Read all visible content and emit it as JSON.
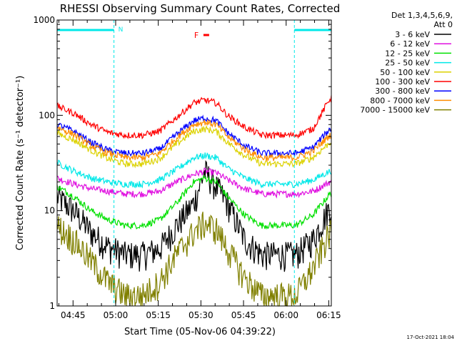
{
  "chart_data": {
    "type": "line",
    "title": "RHESSI Observing Summary Count Rates, Corrected",
    "xlabel": "Start Time (05-Nov-06 04:39:22)",
    "ylabel": "Corrected Count Rate (s⁻¹ detector⁻¹)",
    "y_scale": "log",
    "ylim": [
      1,
      1000
    ],
    "xlim_minutes": [
      0,
      96.5
    ],
    "x_tick_labels": [
      "04:45",
      "05:00",
      "05:15",
      "05:30",
      "05:45",
      "06:00",
      "06:15"
    ],
    "x_tick_minutes": [
      5.6,
      20.6,
      35.6,
      50.6,
      65.6,
      80.6,
      95.6
    ],
    "y_tick_labels": [
      "1",
      "10",
      "100",
      "1000"
    ],
    "y_tick_values": [
      1,
      10,
      100,
      1000
    ],
    "legend_header": [
      "Det 1,3,4,5,6,9,",
      "Att 0"
    ],
    "legend_position": "right",
    "annotations": {
      "night_label": "N",
      "flare_label": "F",
      "night_bars_minutes": [
        [
          0,
          20
        ],
        [
          83.5,
          96.5
        ]
      ],
      "flare_bar_minutes": [
        51.5,
        53.5
      ]
    },
    "footer_date": "17-Oct-2021 18:04",
    "x_minutes": [
      0,
      6,
      12,
      18,
      24,
      30,
      36,
      42,
      48,
      52,
      56,
      60,
      66,
      72,
      78,
      84,
      90,
      96
    ],
    "series": [
      {
        "name": "3 - 6 keV",
        "color": "#000000",
        "values": [
          14,
          10,
          6,
          4.2,
          3.5,
          3.5,
          4,
          7,
          12,
          26,
          18,
          12,
          5,
          3.5,
          3.5,
          3.5,
          5,
          11
        ]
      },
      {
        "name": "6 - 12 keV",
        "color": "#e010e0",
        "values": [
          22,
          19,
          17,
          16,
          15,
          15,
          16,
          20,
          24,
          26,
          25,
          21,
          17,
          15,
          15,
          15,
          16,
          20
        ]
      },
      {
        "name": "12 - 25 keV",
        "color": "#00e000",
        "values": [
          18,
          14,
          10,
          8,
          7,
          7,
          8,
          12,
          20,
          22,
          20,
          14,
          9,
          7,
          7,
          7,
          9,
          15
        ]
      },
      {
        "name": "25 - 50 keV",
        "color": "#00e8e8",
        "values": [
          32,
          26,
          22,
          20,
          19,
          19,
          21,
          27,
          36,
          38,
          36,
          28,
          22,
          19,
          19,
          19,
          21,
          26
        ]
      },
      {
        "name": "50 - 100 keV",
        "color": "#dcd200",
        "values": [
          65,
          55,
          43,
          35,
          31,
          31,
          35,
          50,
          68,
          72,
          68,
          52,
          38,
          31,
          31,
          31,
          36,
          52
        ]
      },
      {
        "name": "100 - 300 keV",
        "color": "#ff0000",
        "values": [
          125,
          105,
          80,
          66,
          62,
          62,
          68,
          95,
          135,
          145,
          135,
          100,
          75,
          62,
          62,
          62,
          72,
          150
        ]
      },
      {
        "name": "300 - 800 keV",
        "color": "#0000ff",
        "values": [
          80,
          68,
          52,
          43,
          40,
          40,
          44,
          63,
          88,
          94,
          88,
          66,
          48,
          40,
          40,
          40,
          46,
          72
        ]
      },
      {
        "name": "800 - 7000 keV",
        "color": "#ff8c00",
        "values": [
          75,
          63,
          48,
          40,
          36,
          36,
          40,
          58,
          80,
          85,
          80,
          60,
          44,
          36,
          36,
          36,
          42,
          62
        ]
      },
      {
        "name": "7000 - 15000 keV",
        "color": "#808000",
        "values": [
          7,
          5,
          3,
          1.8,
          1.3,
          1.3,
          1.8,
          3.5,
          6,
          7.5,
          6.5,
          4,
          2,
          1.3,
          1.3,
          1.3,
          2.5,
          6
        ]
      }
    ]
  }
}
